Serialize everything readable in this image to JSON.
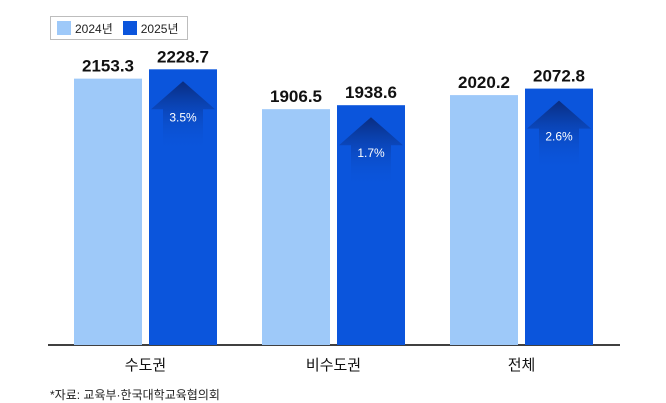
{
  "legend": {
    "items": [
      {
        "label": "2024년",
        "color": "#9ec9f9"
      },
      {
        "label": "2025년",
        "color": "#0b55dc"
      }
    ]
  },
  "source": "*자료: 교육부·한국대학교육협의회",
  "chart_data": {
    "type": "bar",
    "categories": [
      "수도권",
      "비수도권",
      "전체"
    ],
    "series": [
      {
        "name": "2024년",
        "values": [
          2153.3,
          1906.5,
          2020.2
        ],
        "color": "#9ec9f9"
      },
      {
        "name": "2025년",
        "values": [
          2228.7,
          1938.6,
          2072.8
        ],
        "color": "#0b55dc"
      }
    ],
    "value_labels": [
      [
        "2153.3",
        "1906.5",
        "2020.2"
      ],
      [
        "2228.7",
        "1938.6",
        "2072.8"
      ]
    ],
    "change_labels": [
      "3.5%",
      "1.7%",
      "2.6%"
    ],
    "grid": false,
    "legend_position": "top-left"
  }
}
